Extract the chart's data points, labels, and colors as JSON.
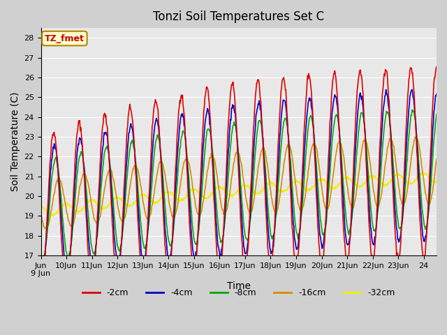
{
  "title": "Tonzi Soil Temperatures Set C",
  "xlabel": "Time",
  "ylabel": "Soil Temperature (C)",
  "ylim": [
    17.0,
    28.5
  ],
  "yticks": [
    17.0,
    18.0,
    19.0,
    20.0,
    21.0,
    22.0,
    23.0,
    24.0,
    25.0,
    26.0,
    27.0,
    28.0
  ],
  "colors": {
    "-2cm": "#dd0000",
    "-4cm": "#0000cc",
    "-8cm": "#00aa00",
    "-16cm": "#dd8800",
    "-32cm": "#eeee00"
  },
  "legend_labels": [
    "-2cm",
    "-4cm",
    "-8cm",
    "-16cm",
    "-32cm"
  ],
  "annotation_label": "TZ_fmet",
  "annotation_color": "#cc0000",
  "annotation_bg": "#ffffcc",
  "n_days": 15.5,
  "start_day": 9
}
